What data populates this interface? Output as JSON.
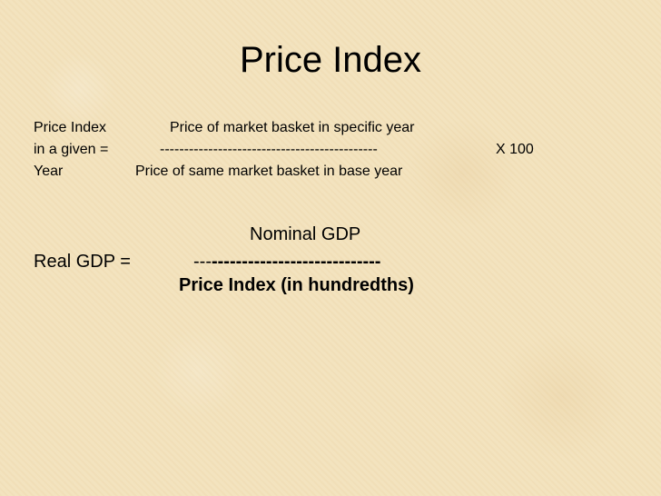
{
  "slide": {
    "title": "Price Index",
    "price_index_formula": {
      "lhs_line1": "Price Index",
      "lhs_line2": "in a given  =",
      "lhs_line3": "Year",
      "numerator": "Price of market basket in specific year",
      "fraction_bar": "---------------------------------------------",
      "denominator": "Price of same market basket in base year",
      "multiplier": "X 100"
    },
    "real_gdp_formula": {
      "lhs": "Real GDP =",
      "numerator": "Nominal GDP",
      "fraction_bar_start": "---",
      "fraction_bar_bold": "----------------------------",
      "denominator": "Price Index (in hundredths)"
    }
  }
}
